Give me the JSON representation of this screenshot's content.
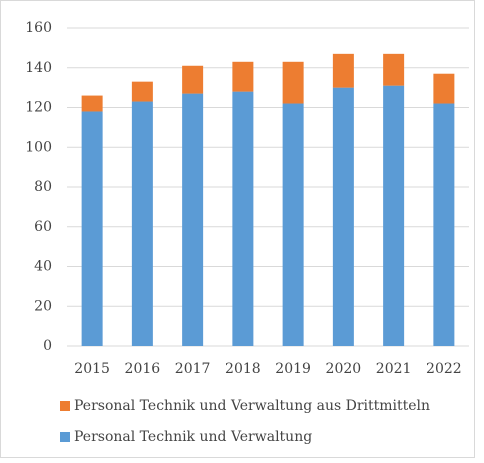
{
  "chart_data": {
    "type": "stacked_bar",
    "categories": [
      "2015",
      "2016",
      "2017",
      "2018",
      "2019",
      "2020",
      "2021",
      "2022"
    ],
    "series": [
      {
        "name": "Personal Technik und Verwaltung aus Drittmitteln",
        "color": "#ed7d31",
        "values": [
          8,
          10,
          14,
          15,
          21,
          17,
          16,
          15
        ]
      },
      {
        "name": "Personal Technik und Verwaltung",
        "color": "#5b9bd5",
        "values": [
          118,
          123,
          127,
          128,
          122,
          130,
          131,
          122
        ]
      }
    ],
    "ylim": [
      0,
      160
    ],
    "yticks": [
      0,
      20,
      40,
      60,
      80,
      100,
      120,
      140,
      160
    ],
    "grid": true,
    "legend": "bottom"
  }
}
